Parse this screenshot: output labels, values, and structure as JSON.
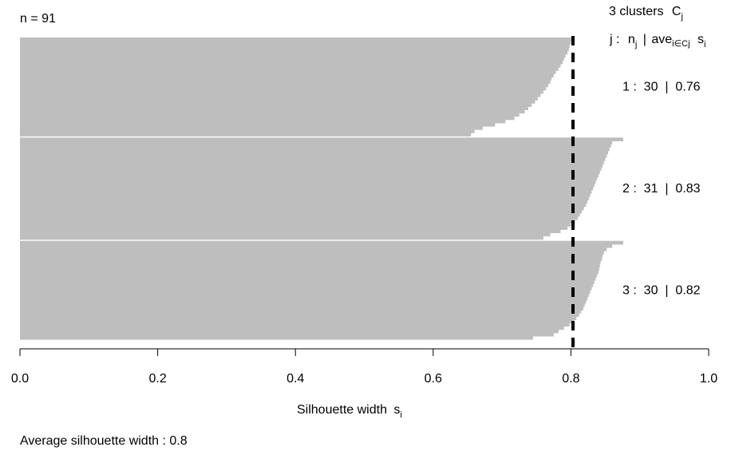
{
  "chart_data": {
    "type": "bar",
    "orientation": "horizontal",
    "n_label": "n = 91",
    "header_line1": "3 clusters",
    "header_line1_sym": "C",
    "header_line1_sub": "j",
    "header_line2_j": "j :",
    "header_line2_n": "n",
    "header_line2_n_sub": "j",
    "header_line2_sep": "|",
    "header_line2_ave": "ave",
    "header_line2_ave_sub": "i∈Cj",
    "header_line2_s": "s",
    "header_line2_s_sub": "i",
    "xlabel_main": "Silhouette width",
    "xlabel_sym": "s",
    "xlabel_sub": "i",
    "footer": "Average silhouette width :  0.8",
    "xlim": [
      0,
      1
    ],
    "xticks": [
      "0.0",
      "0.2",
      "0.4",
      "0.6",
      "0.8",
      "1.0"
    ],
    "average_width": 0.803,
    "bar_color": "#bebebe",
    "clusters": [
      {
        "label": "1 :  30  |  0.76",
        "values": [
          0.803,
          0.8,
          0.798,
          0.797,
          0.795,
          0.792,
          0.79,
          0.788,
          0.785,
          0.782,
          0.778,
          0.775,
          0.772,
          0.77,
          0.767,
          0.764,
          0.76,
          0.756,
          0.752,
          0.748,
          0.743,
          0.738,
          0.733,
          0.725,
          0.718,
          0.705,
          0.69,
          0.672,
          0.66,
          0.655
        ]
      },
      {
        "label": "2 :  31  |  0.83",
        "values": [
          0.876,
          0.86,
          0.858,
          0.856,
          0.854,
          0.852,
          0.85,
          0.848,
          0.846,
          0.844,
          0.842,
          0.84,
          0.838,
          0.836,
          0.834,
          0.832,
          0.83,
          0.828,
          0.826,
          0.824,
          0.822,
          0.819,
          0.816,
          0.813,
          0.81,
          0.806,
          0.8,
          0.795,
          0.785,
          0.77,
          0.76
        ]
      },
      {
        "label": "3 :  30  |  0.82",
        "values": [
          0.876,
          0.86,
          0.852,
          0.848,
          0.846,
          0.845,
          0.843,
          0.842,
          0.841,
          0.84,
          0.838,
          0.836,
          0.834,
          0.832,
          0.83,
          0.828,
          0.826,
          0.824,
          0.822,
          0.82,
          0.818,
          0.815,
          0.812,
          0.808,
          0.804,
          0.798,
          0.79,
          0.782,
          0.775,
          0.745
        ]
      }
    ]
  }
}
